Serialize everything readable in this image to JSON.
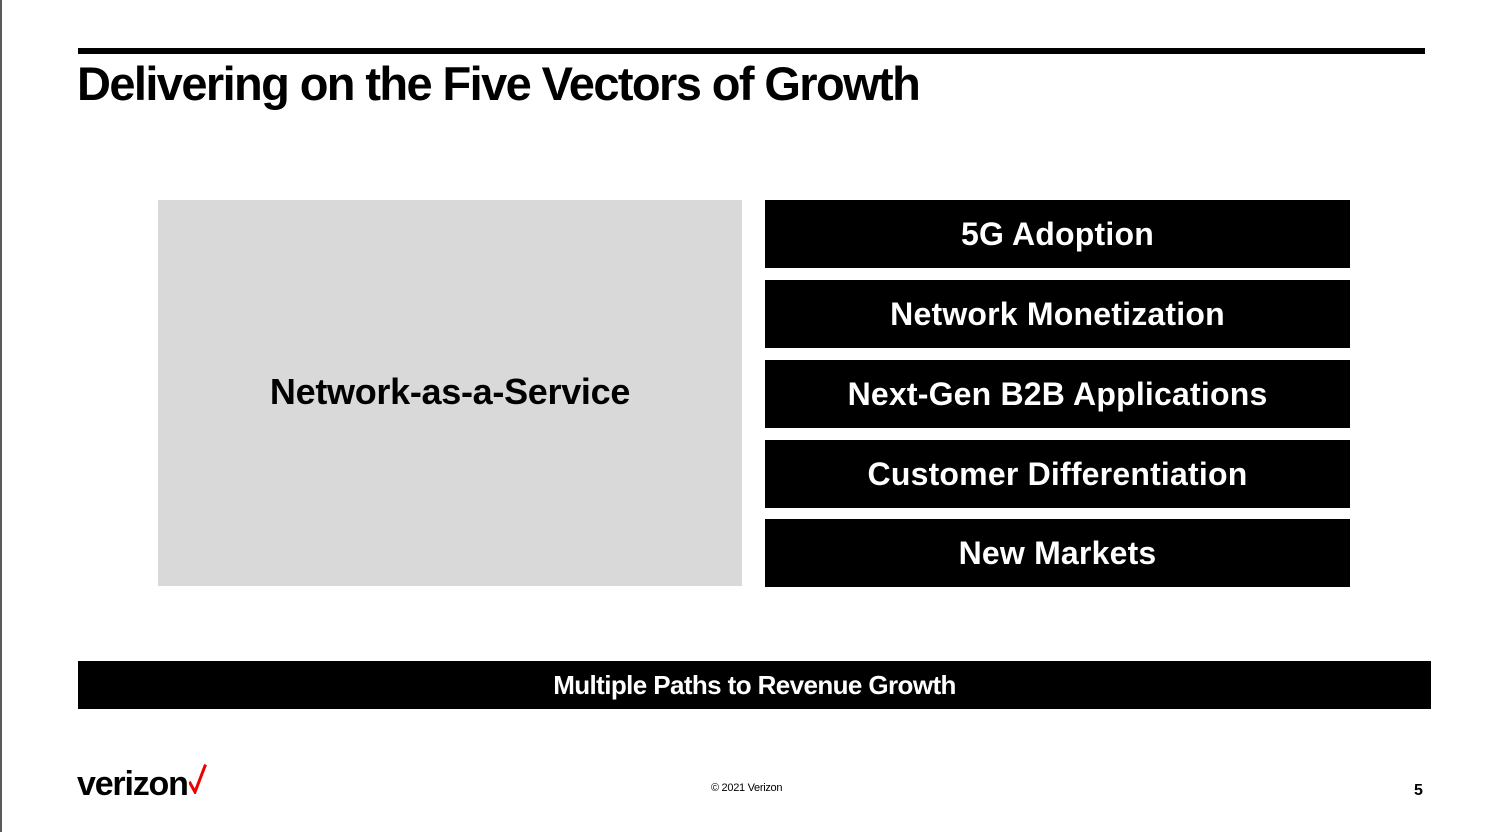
{
  "slide": {
    "title": "Delivering on the Five Vectors of Growth",
    "foundation_label": "Network-as-a-Service",
    "vectors": [
      "5G Adoption",
      "Network Monetization",
      "Next-Gen B2B Applications",
      "Customer Differentiation",
      "New Markets"
    ],
    "summary_banner": "Multiple Paths to Revenue Growth"
  },
  "footer": {
    "logo": "verizon",
    "logo_check_color": "#ee0000",
    "copyright": "© 2021 Verizon",
    "page_number": "5"
  }
}
